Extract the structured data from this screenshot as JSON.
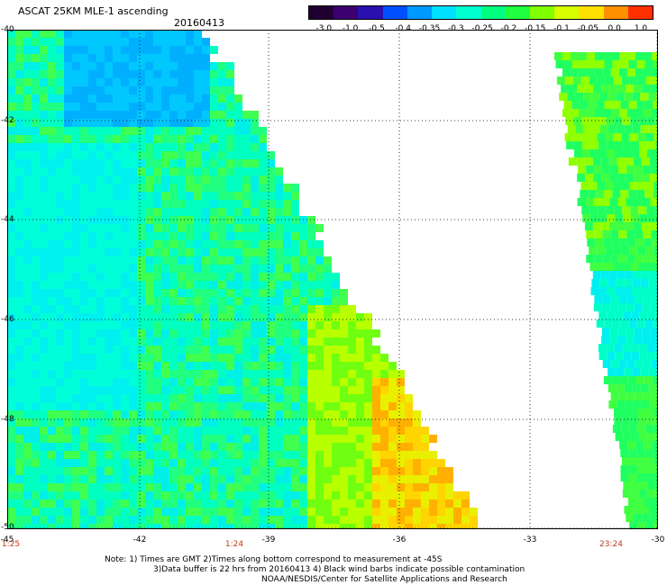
{
  "header": {
    "title": "ASCAT 25KM MLE-1 ascending",
    "date": "20160413"
  },
  "colorbar": {
    "labels": [
      "-3.0",
      "-1.0",
      "-0.5",
      "-0.4",
      "-0.35",
      "-0.3",
      "-0.25",
      "-0.2",
      "-0.15",
      "-0.1",
      "-0.05",
      "0.0",
      "1.0"
    ],
    "colors": [
      "#200033",
      "#3d0070",
      "#2a10b0",
      "#0050ff",
      "#0099ff",
      "#00e0ff",
      "#00ffd0",
      "#00ff80",
      "#20ff40",
      "#80ff00",
      "#d8ff00",
      "#ffe000",
      "#ff9000",
      "#ff3000"
    ]
  },
  "map": {
    "lat_labels": [
      "-40",
      "-42",
      "-44",
      "-46",
      "-48",
      "-50"
    ],
    "lon_labels": [
      "-45",
      "-42",
      "-39",
      "-36",
      "-33",
      "-30"
    ],
    "time_labels": [
      "1:25",
      "1:24",
      "23:24"
    ]
  },
  "footer": {
    "note_line1": "Note: 1) Times are GMT 2)Times along bottom correspond to measurement at -45S",
    "note_line2": "3)Data buffer is 22 hrs from 20160413 4) Black wind barbs indicate possible contamination",
    "credit": "NOAA/NESDIS/Center for Satellite Applications and Research"
  }
}
